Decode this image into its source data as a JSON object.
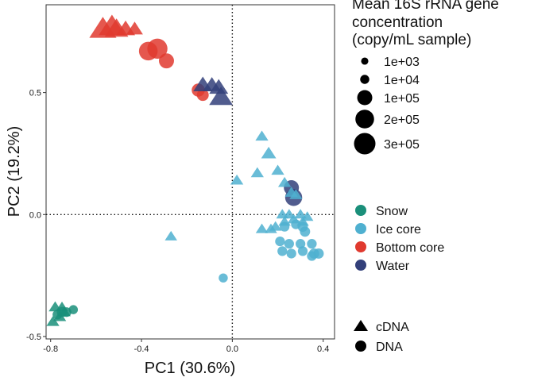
{
  "chart_data": {
    "type": "scatter",
    "xlabel": "PC1 (30.6%)",
    "ylabel": "PC2 (19.2%)",
    "xlim": [
      -0.82,
      0.45
    ],
    "ylim": [
      -0.51,
      0.86
    ],
    "xticks": [
      -0.8,
      -0.4,
      0.0,
      0.4
    ],
    "xtick_labels": [
      "-0.8",
      "-0.4",
      "0.0",
      "0.4"
    ],
    "yticks": [
      -0.5,
      0.0,
      0.5
    ],
    "ytick_labels": [
      "-0.5",
      "0.0",
      "0.5"
    ],
    "reference_lines": {
      "x": 0,
      "y": 0,
      "style": "dotted"
    },
    "grid": false,
    "legend_placement": "right",
    "colors": {
      "Snow": "#1a8f7a",
      "Ice core": "#4fb0d0",
      "Bottom core": "#e03a2f",
      "Water": "#33407a"
    },
    "size_legend": {
      "title_lines": [
        "Mean 16S rRNA gene",
        "concentration",
        "(copy/mL sample)"
      ],
      "entries": [
        {
          "label": "1e+03",
          "value": 1000
        },
        {
          "label": "1e+04",
          "value": 10000
        },
        {
          "label": "1e+05",
          "value": 100000
        },
        {
          "label": "2e+05",
          "value": 200000
        },
        {
          "label": "3e+05",
          "value": 300000
        }
      ]
    },
    "color_legend": [
      "Snow",
      "Ice core",
      "Bottom core",
      "Water"
    ],
    "shape_legend": [
      {
        "label": "cDNA",
        "shape": "triangle"
      },
      {
        "label": "DNA",
        "shape": "circle"
      }
    ],
    "points": [
      {
        "x": -0.79,
        "y": -0.44,
        "group": "Snow",
        "shape": "triangle",
        "size": 20000
      },
      {
        "x": -0.78,
        "y": -0.38,
        "group": "Snow",
        "shape": "triangle",
        "size": 20000
      },
      {
        "x": -0.76,
        "y": -0.42,
        "group": "Snow",
        "shape": "triangle",
        "size": 20000
      },
      {
        "x": -0.75,
        "y": -0.38,
        "group": "Snow",
        "shape": "triangle",
        "size": 15000
      },
      {
        "x": -0.74,
        "y": -0.4,
        "group": "Snow",
        "shape": "triangle",
        "size": 20000
      },
      {
        "x": -0.77,
        "y": -0.41,
        "group": "Snow",
        "shape": "circle",
        "size": 15000
      },
      {
        "x": -0.75,
        "y": -0.4,
        "group": "Snow",
        "shape": "circle",
        "size": 20000
      },
      {
        "x": -0.73,
        "y": -0.4,
        "group": "Snow",
        "shape": "circle",
        "size": 15000
      },
      {
        "x": -0.7,
        "y": -0.39,
        "group": "Snow",
        "shape": "circle",
        "size": 10000
      },
      {
        "x": -0.57,
        "y": 0.76,
        "group": "Bottom core",
        "shape": "triangle",
        "size": 300000
      },
      {
        "x": -0.53,
        "y": 0.77,
        "group": "Bottom core",
        "shape": "triangle",
        "size": 280000
      },
      {
        "x": -0.51,
        "y": 0.76,
        "group": "Bottom core",
        "shape": "triangle",
        "size": 200000
      },
      {
        "x": -0.47,
        "y": 0.76,
        "group": "Bottom core",
        "shape": "triangle",
        "size": 100000
      },
      {
        "x": -0.43,
        "y": 0.76,
        "group": "Bottom core",
        "shape": "triangle",
        "size": 60000
      },
      {
        "x": -0.33,
        "y": 0.68,
        "group": "Bottom core",
        "shape": "circle",
        "size": 250000
      },
      {
        "x": -0.37,
        "y": 0.67,
        "group": "Bottom core",
        "shape": "circle",
        "size": 200000
      },
      {
        "x": -0.29,
        "y": 0.63,
        "group": "Bottom core",
        "shape": "circle",
        "size": 100000
      },
      {
        "x": -0.15,
        "y": 0.51,
        "group": "Bottom core",
        "shape": "circle",
        "size": 60000
      },
      {
        "x": -0.13,
        "y": 0.49,
        "group": "Bottom core",
        "shape": "circle",
        "size": 40000
      },
      {
        "x": -0.13,
        "y": 0.53,
        "group": "Water",
        "shape": "triangle",
        "size": 100000
      },
      {
        "x": -0.09,
        "y": 0.53,
        "group": "Water",
        "shape": "triangle",
        "size": 80000
      },
      {
        "x": -0.06,
        "y": 0.52,
        "group": "Water",
        "shape": "triangle",
        "size": 100000
      },
      {
        "x": -0.05,
        "y": 0.48,
        "group": "Water",
        "shape": "triangle",
        "size": 200000
      },
      {
        "x": 0.26,
        "y": 0.11,
        "group": "Water",
        "shape": "circle",
        "size": 100000
      },
      {
        "x": 0.27,
        "y": 0.07,
        "group": "Water",
        "shape": "circle",
        "size": 150000
      },
      {
        "x": 0.13,
        "y": 0.32,
        "group": "Ice core",
        "shape": "triangle",
        "size": 20000
      },
      {
        "x": 0.16,
        "y": 0.25,
        "group": "Ice core",
        "shape": "triangle",
        "size": 40000
      },
      {
        "x": 0.11,
        "y": 0.17,
        "group": "Ice core",
        "shape": "triangle",
        "size": 20000
      },
      {
        "x": 0.2,
        "y": 0.18,
        "group": "Ice core",
        "shape": "triangle",
        "size": 20000
      },
      {
        "x": 0.02,
        "y": 0.14,
        "group": "Ice core",
        "shape": "triangle",
        "size": 20000
      },
      {
        "x": 0.23,
        "y": 0.13,
        "group": "Ice core",
        "shape": "triangle",
        "size": 20000
      },
      {
        "x": 0.26,
        "y": 0.09,
        "group": "Ice core",
        "shape": "triangle",
        "size": 20000
      },
      {
        "x": 0.28,
        "y": 0.08,
        "group": "Ice core",
        "shape": "triangle",
        "size": 20000
      },
      {
        "x": 0.22,
        "y": 0.0,
        "group": "Ice core",
        "shape": "triangle",
        "size": 15000
      },
      {
        "x": 0.25,
        "y": 0.0,
        "group": "Ice core",
        "shape": "triangle",
        "size": 15000
      },
      {
        "x": 0.3,
        "y": 0.0,
        "group": "Ice core",
        "shape": "triangle",
        "size": 15000
      },
      {
        "x": 0.33,
        "y": -0.01,
        "group": "Ice core",
        "shape": "triangle",
        "size": 15000
      },
      {
        "x": 0.27,
        "y": -0.02,
        "group": "Ice core",
        "shape": "triangle",
        "size": 15000
      },
      {
        "x": 0.23,
        "y": -0.03,
        "group": "Ice core",
        "shape": "triangle",
        "size": 15000
      },
      {
        "x": 0.31,
        "y": -0.03,
        "group": "Ice core",
        "shape": "triangle",
        "size": 15000
      },
      {
        "x": 0.19,
        "y": -0.05,
        "group": "Ice core",
        "shape": "triangle",
        "size": 15000
      },
      {
        "x": 0.13,
        "y": -0.06,
        "group": "Ice core",
        "shape": "triangle",
        "size": 15000
      },
      {
        "x": 0.17,
        "y": -0.06,
        "group": "Ice core",
        "shape": "triangle",
        "size": 15000
      },
      {
        "x": -0.27,
        "y": -0.09,
        "group": "Ice core",
        "shape": "triangle",
        "size": 15000
      },
      {
        "x": 0.23,
        "y": -0.05,
        "group": "Ice core",
        "shape": "circle",
        "size": 15000
      },
      {
        "x": 0.28,
        "y": -0.04,
        "group": "Ice core",
        "shape": "circle",
        "size": 15000
      },
      {
        "x": 0.31,
        "y": -0.05,
        "group": "Ice core",
        "shape": "circle",
        "size": 20000
      },
      {
        "x": 0.32,
        "y": -0.07,
        "group": "Ice core",
        "shape": "circle",
        "size": 20000
      },
      {
        "x": 0.21,
        "y": -0.11,
        "group": "Ice core",
        "shape": "circle",
        "size": 15000
      },
      {
        "x": 0.25,
        "y": -0.12,
        "group": "Ice core",
        "shape": "circle",
        "size": 15000
      },
      {
        "x": 0.3,
        "y": -0.12,
        "group": "Ice core",
        "shape": "circle",
        "size": 15000
      },
      {
        "x": 0.35,
        "y": -0.12,
        "group": "Ice core",
        "shape": "circle",
        "size": 15000
      },
      {
        "x": 0.22,
        "y": -0.15,
        "group": "Ice core",
        "shape": "circle",
        "size": 15000
      },
      {
        "x": 0.26,
        "y": -0.16,
        "group": "Ice core",
        "shape": "circle",
        "size": 15000
      },
      {
        "x": 0.31,
        "y": -0.15,
        "group": "Ice core",
        "shape": "circle",
        "size": 15000
      },
      {
        "x": 0.36,
        "y": -0.16,
        "group": "Ice core",
        "shape": "circle",
        "size": 20000
      },
      {
        "x": 0.38,
        "y": -0.16,
        "group": "Ice core",
        "shape": "circle",
        "size": 20000
      },
      {
        "x": 0.35,
        "y": -0.17,
        "group": "Ice core",
        "shape": "circle",
        "size": 15000
      },
      {
        "x": -0.04,
        "y": -0.26,
        "group": "Ice core",
        "shape": "circle",
        "size": 10000
      }
    ]
  }
}
